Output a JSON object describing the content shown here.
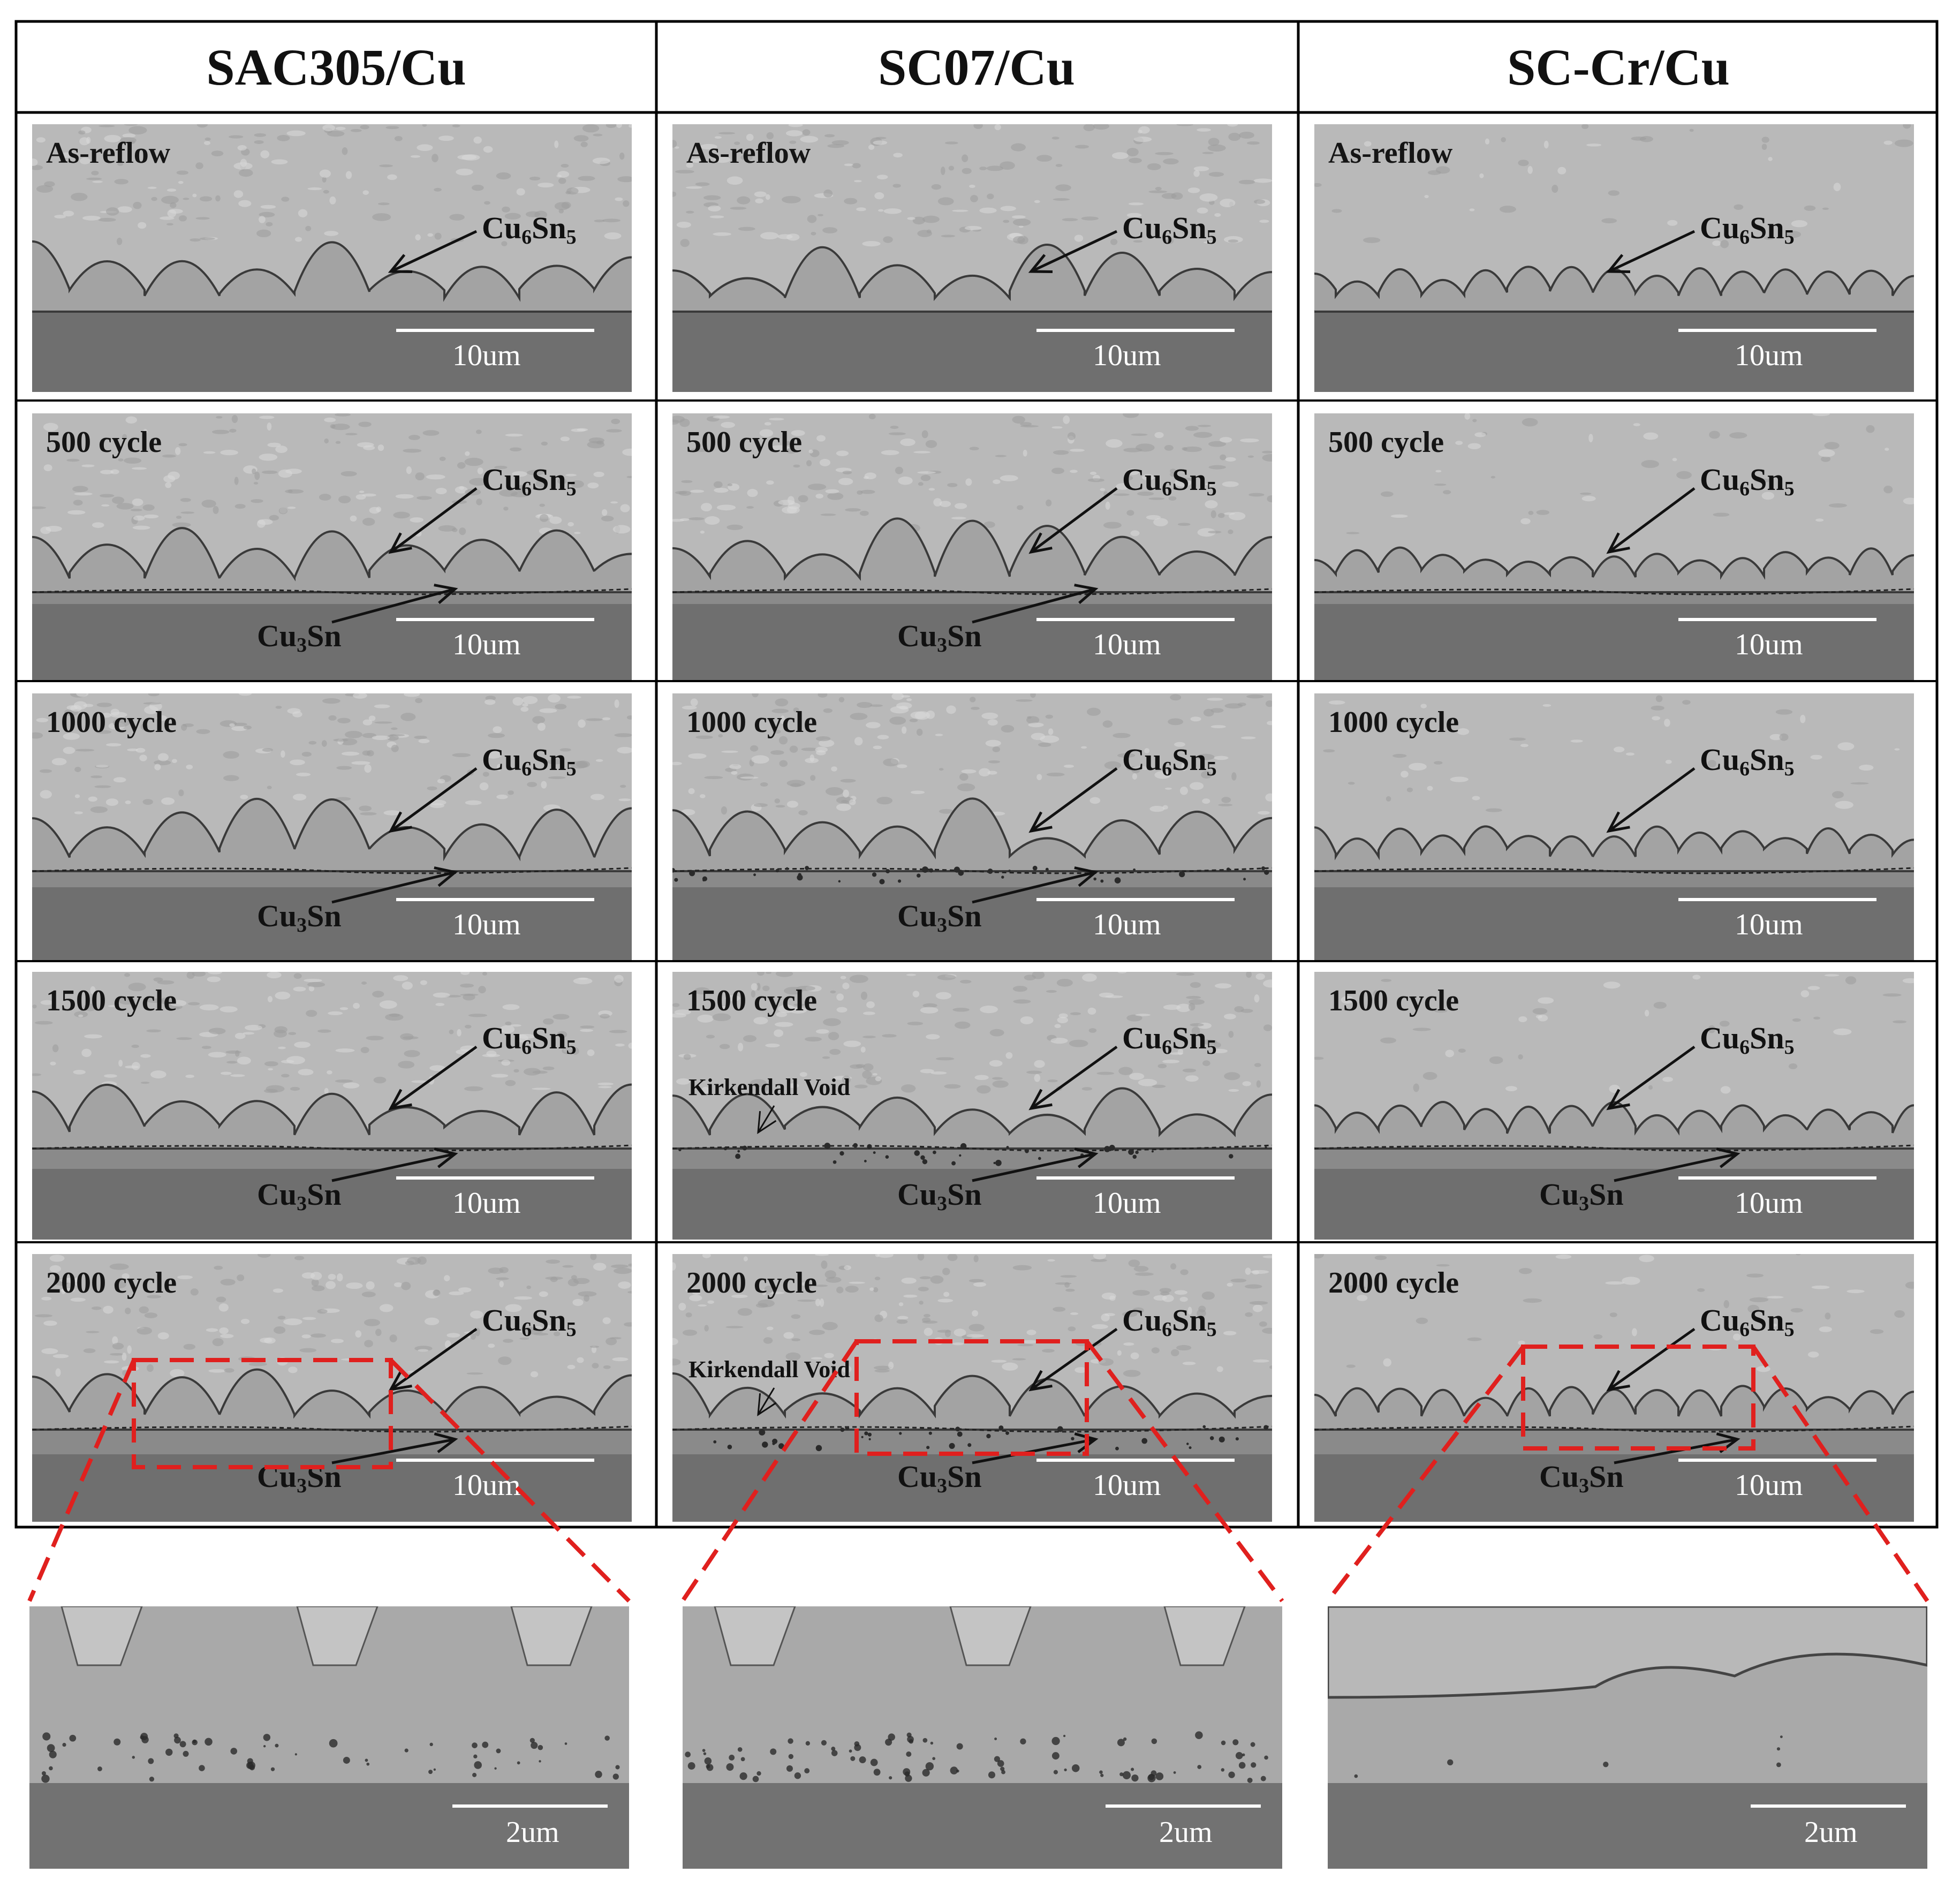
{
  "columns": [
    {
      "header": "SAC305/Cu"
    },
    {
      "header": "SC07/Cu"
    },
    {
      "header": "SC-Cr/Cu"
    }
  ],
  "rows": [
    {
      "label": "As-reflow"
    },
    {
      "label": "500 cycle"
    },
    {
      "label": "1000 cycle"
    },
    {
      "label": "1500 cycle"
    },
    {
      "label": "2000 cycle"
    }
  ],
  "annotations": {
    "cu6sn5_base": "Cu",
    "cu6sn5_sub1": "6",
    "cu6sn5_mid": "Sn",
    "cu6sn5_sub2": "5",
    "cu3sn_base": "Cu",
    "cu3sn_sub1": "3",
    "cu3sn_mid": "Sn",
    "kirkendall": "Kirkendall Void"
  },
  "scale": {
    "main": "10um",
    "zoom": "2um"
  },
  "colors": {
    "solder": "#b9b9b9",
    "imc": "#a3a3a3",
    "copper": "#6f6f6f",
    "grid_line": "#000000",
    "zoom_box": "#e0201e"
  }
}
